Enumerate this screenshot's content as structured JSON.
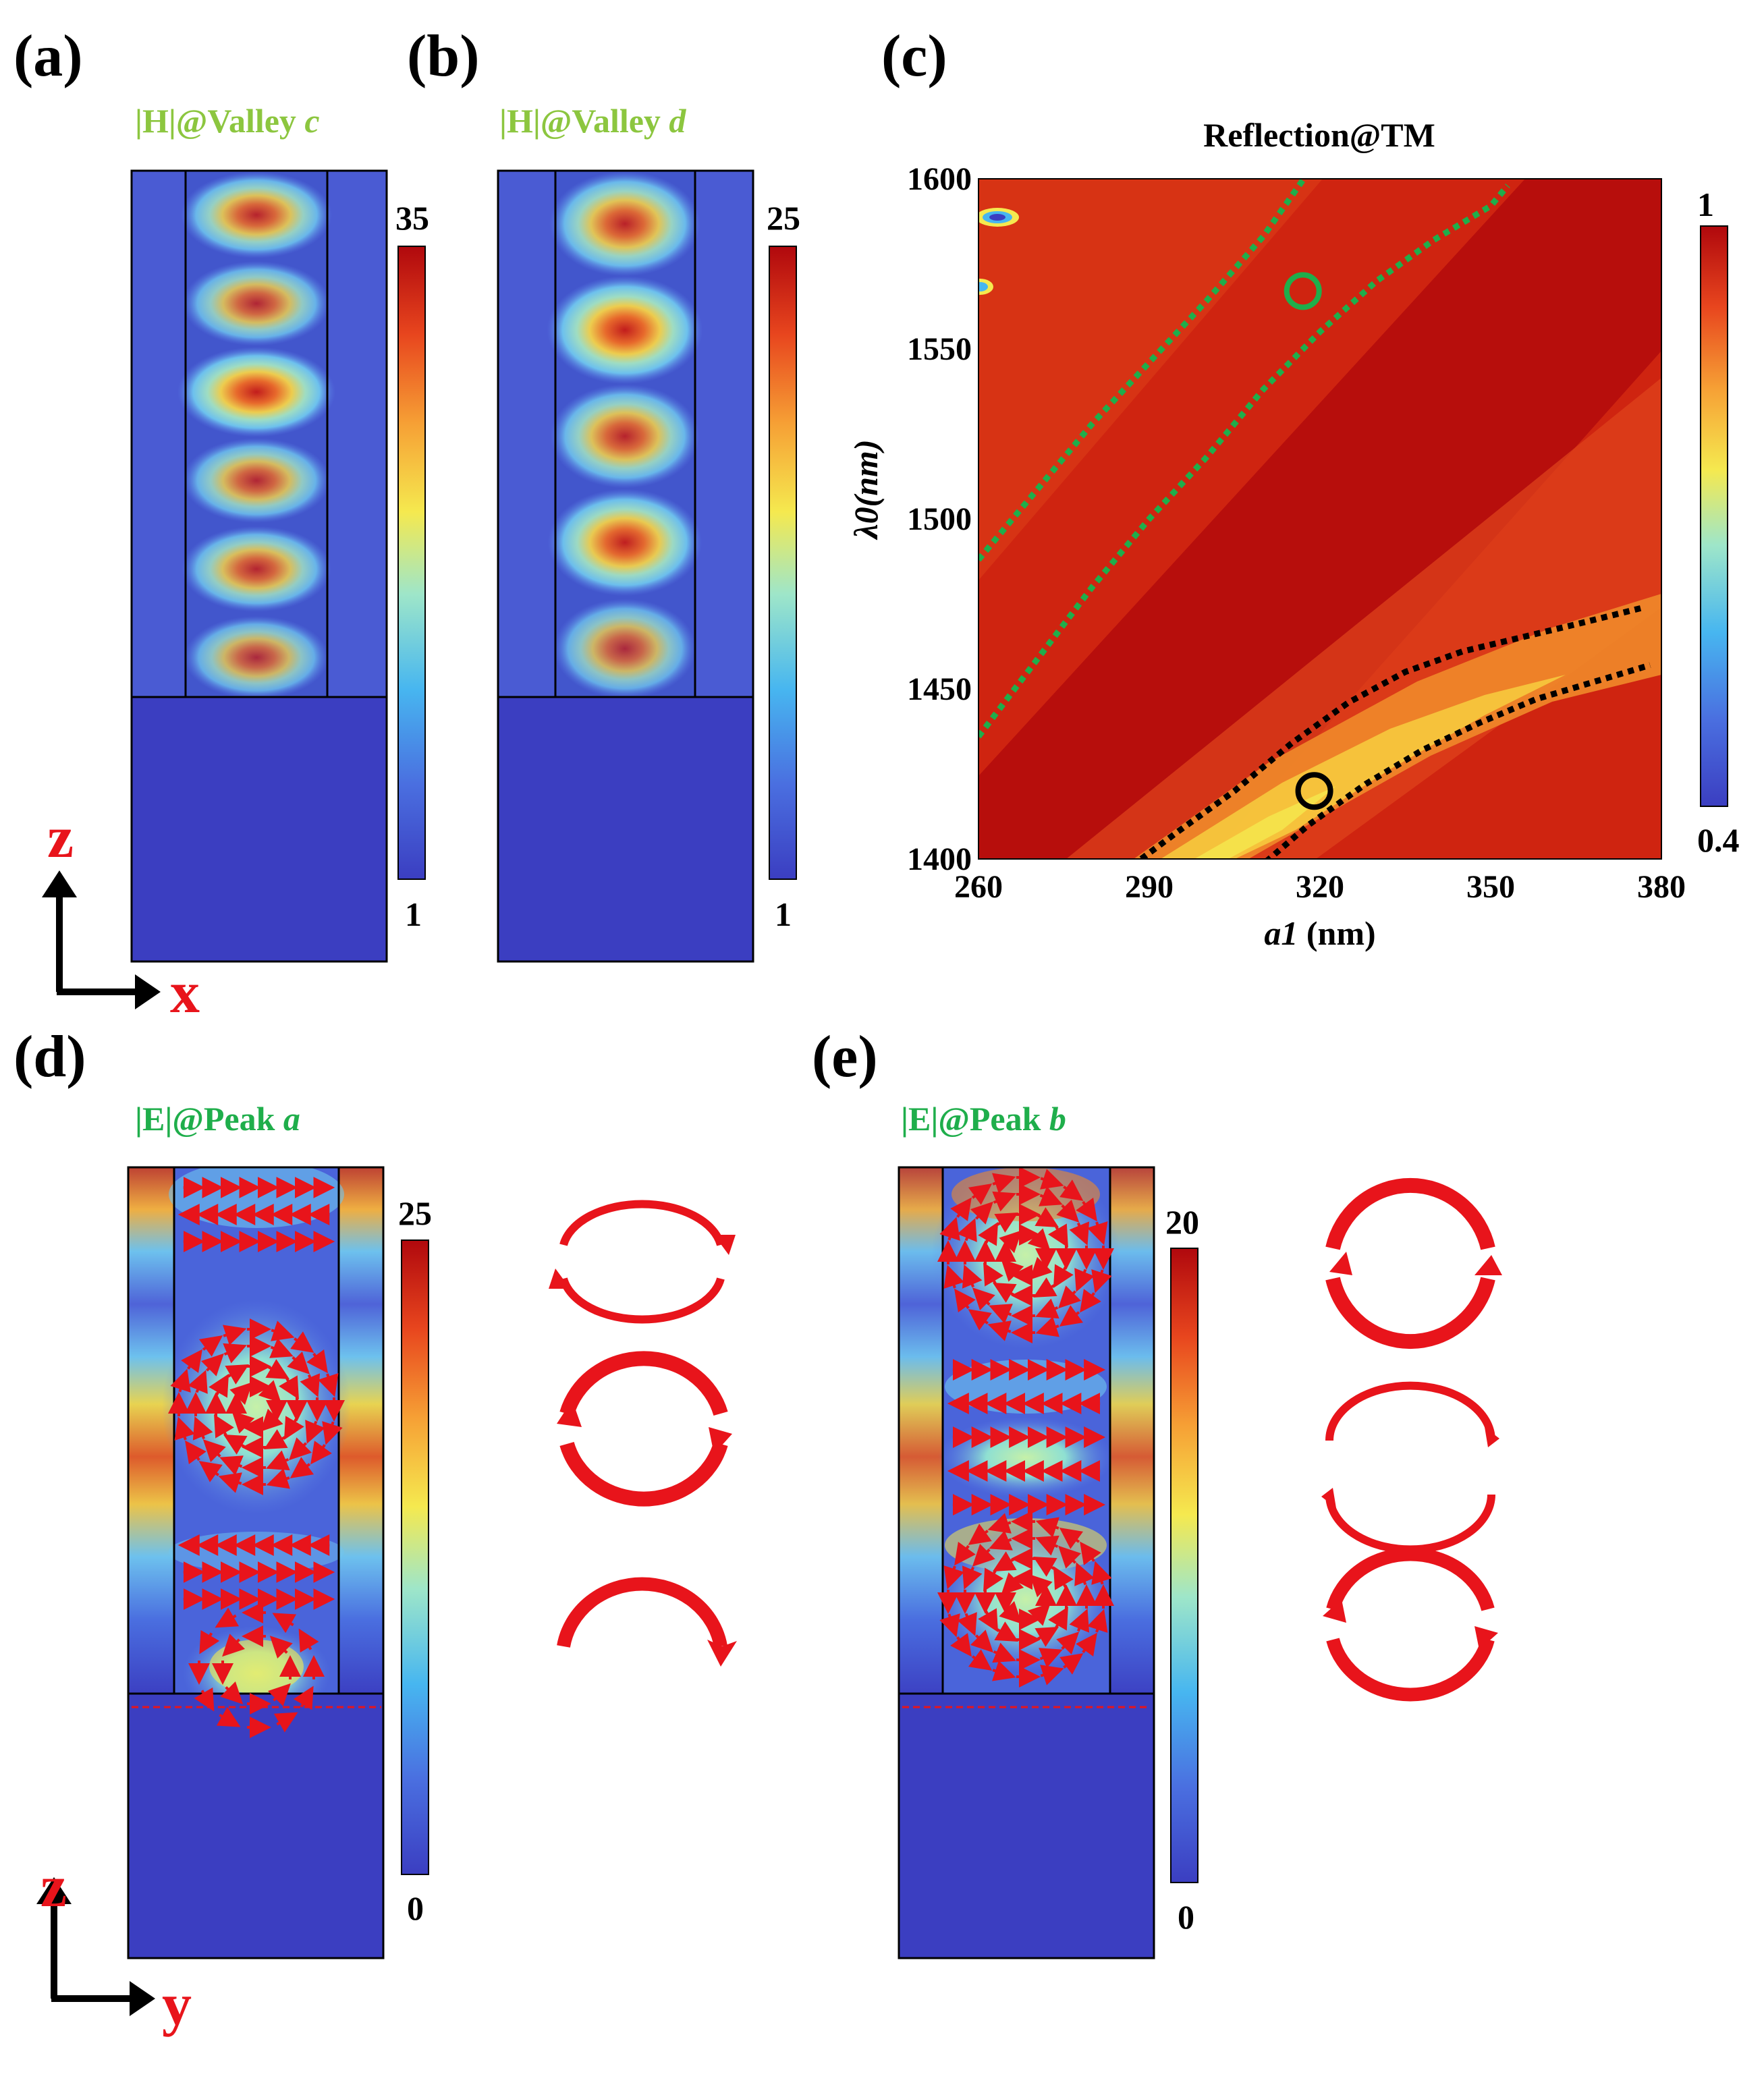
{
  "panel_labels": {
    "a": "(a)",
    "b": "(b)",
    "c": "(c)",
    "d": "(d)",
    "e": "(e)"
  },
  "panel_a": {
    "title_prefix": "|H|@Valley ",
    "title_var": "c",
    "cb_max": "35",
    "cb_min": "1",
    "field_lobes": [
      0.7,
      0.6,
      0.9,
      0.6,
      0.65,
      0.5
    ]
  },
  "panel_b": {
    "title_prefix": "|H|@Valley ",
    "title_var": "d",
    "cb_max": "25",
    "cb_min": "1",
    "field_lobes": [
      0.75,
      0.9,
      0.7,
      0.85,
      0.5
    ]
  },
  "axes_zx": {
    "z": "z",
    "x": "x"
  },
  "axes_zy": {
    "z": "z",
    "y": "y"
  },
  "panel_d": {
    "title_prefix": "|E|@Peak ",
    "title_var": "a",
    "cb_max": "25",
    "cb_min": "0"
  },
  "panel_e": {
    "title_prefix": "|E|@Peak ",
    "title_var": "b",
    "cb_max": "20",
    "cb_min": "0"
  },
  "colormap": [
    "#3b3ec1",
    "#4a6fe0",
    "#47b6f0",
    "#9ee6c9",
    "#f5e94f",
    "#f6a035",
    "#e8461e",
    "#b0080d"
  ],
  "colors": {
    "green_title": "#8cc63f",
    "green_title2": "#1fae4b",
    "green_dotted": "#1fae4b",
    "arrow_red": "#e8141b"
  },
  "chart_data": {
    "type": "heatmap",
    "title": "Reflection@TM",
    "xlabel_var": "a1",
    "xlabel_unit": " (nm)",
    "ylabel": "λ0(nm)",
    "xlim": [
      260,
      380
    ],
    "ylim": [
      1400,
      1600
    ],
    "x_ticks": [
      "260",
      "290",
      "320",
      "350",
      "380"
    ],
    "y_ticks": [
      "1400",
      "1450",
      "1500",
      "1550",
      "1600"
    ],
    "colorbar": {
      "max": "1",
      "min": "0.4",
      "range": [
        0.4,
        1
      ]
    },
    "green_dotted_curves": [
      [
        [
          260,
          1488
        ],
        [
          270,
          1508
        ],
        [
          280,
          1528
        ],
        [
          290,
          1546
        ],
        [
          300,
          1564
        ],
        [
          310,
          1583
        ],
        [
          318,
          1602
        ]
      ],
      [
        [
          260,
          1436
        ],
        [
          270,
          1458
        ],
        [
          280,
          1480
        ],
        [
          290,
          1500
        ],
        [
          300,
          1518
        ],
        [
          310,
          1538
        ],
        [
          320,
          1555
        ],
        [
          330,
          1570
        ],
        [
          340,
          1582
        ],
        [
          350,
          1592
        ],
        [
          353,
          1598
        ]
      ]
    ],
    "black_dotted_curves": [
      [
        [
          287,
          1398
        ],
        [
          295,
          1408
        ],
        [
          305,
          1420
        ],
        [
          315,
          1434
        ],
        [
          325,
          1446
        ],
        [
          335,
          1455
        ],
        [
          345,
          1461
        ],
        [
          355,
          1465
        ],
        [
          365,
          1469
        ],
        [
          377,
          1474
        ]
      ],
      [
        [
          309,
          1397
        ],
        [
          318,
          1410
        ],
        [
          328,
          1422
        ],
        [
          338,
          1432
        ],
        [
          348,
          1440
        ],
        [
          358,
          1447
        ],
        [
          368,
          1452
        ],
        [
          378,
          1457
        ]
      ]
    ],
    "markers": [
      {
        "x": 317,
        "y": 1567,
        "color": "#1fae4b"
      },
      {
        "x": 319,
        "y": 1420,
        "color": "#000000"
      }
    ]
  }
}
